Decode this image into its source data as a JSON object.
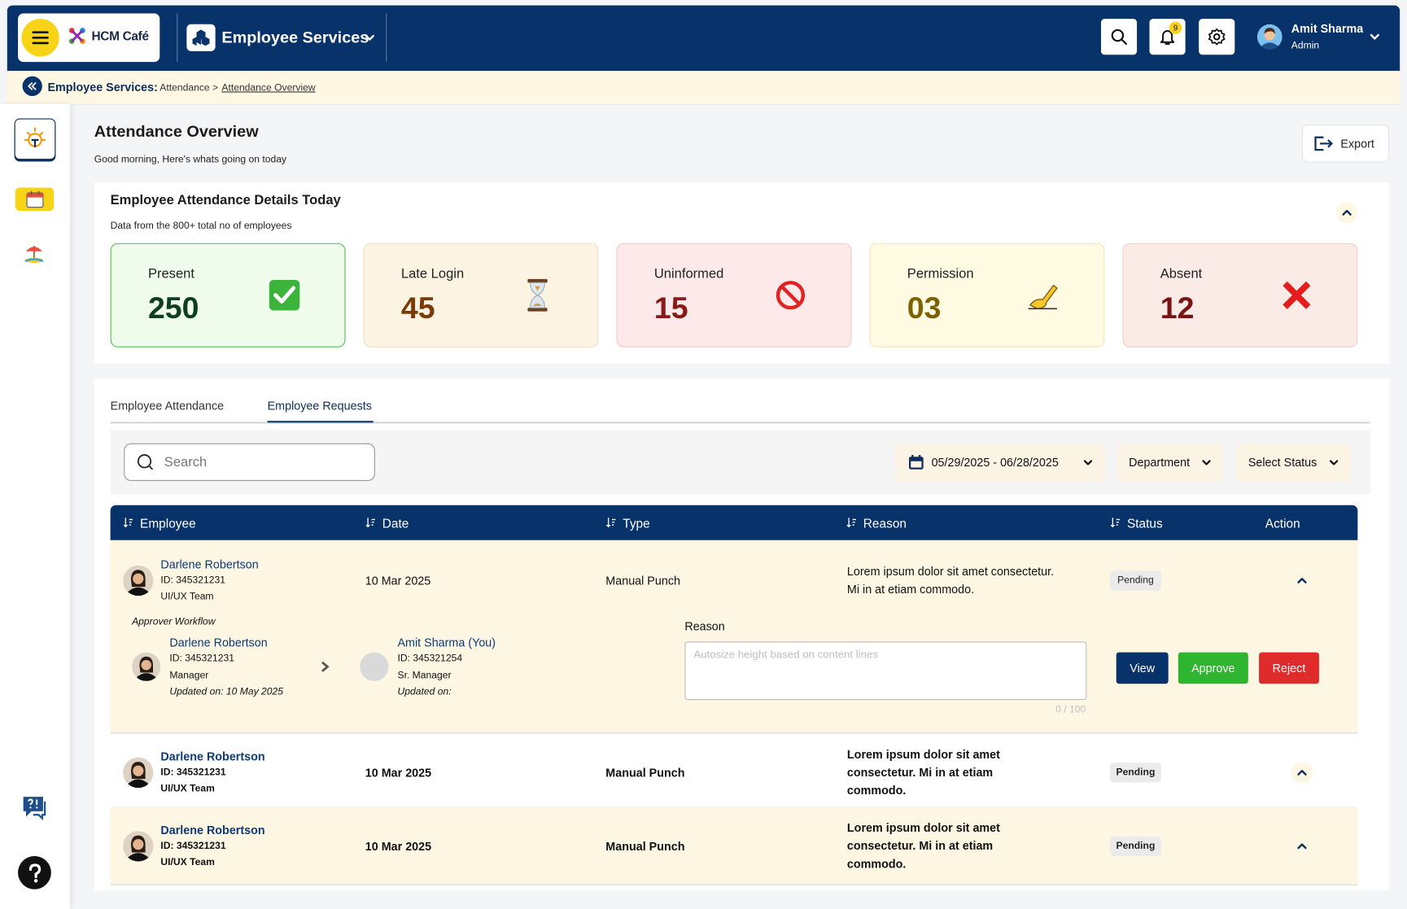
{
  "header": {
    "brand": "HCM Café",
    "module": "Employee Services",
    "notification_count": "9",
    "user": {
      "name": "Amit Sharma",
      "role": "Admin"
    }
  },
  "breadcrumb": {
    "section": "Employee Services:",
    "parent": "Attendance >",
    "current": "Attendance Overview"
  },
  "page": {
    "title": "Attendance Overview",
    "subtitle": "Good morning, Here's whats going on today",
    "export": "Export"
  },
  "summary": {
    "title": "Employee Attendance Details Today",
    "subtitle": "Data from the 800+ total no of employees",
    "cards": [
      {
        "label": "Present",
        "value": "250"
      },
      {
        "label": "Late Login",
        "value": "45"
      },
      {
        "label": "Uninformed",
        "value": "15"
      },
      {
        "label": "Permission",
        "value": "03"
      },
      {
        "label": "Absent",
        "value": "12"
      }
    ]
  },
  "tabs": [
    "Employee Attendance",
    "Employee Requests"
  ],
  "filters": {
    "search": "Search",
    "date_range": "05/29/2025 - 06/28/2025",
    "department": "Department",
    "status": "Select Status"
  },
  "table": {
    "columns": [
      "Employee",
      "Date",
      "Type",
      "Reason",
      "Status",
      "Action"
    ],
    "rows": [
      {
        "name": "Darlene Robertson",
        "id": "ID: 345321231",
        "team": "UI/UX Team",
        "date": "10 Mar 2025",
        "type": "Manual Punch",
        "reason": "Lorem ipsum dolor sit amet consectetur. Mi in at etiam commodo.",
        "status": "Pending"
      },
      {
        "name": "Darlene Robertson",
        "id": "ID: 345321231",
        "team": "UI/UX Team",
        "date": "10 Mar 2025",
        "type": "Manual Punch",
        "reason": "Lorem ipsum dolor sit amet consectetur. Mi in at etiam commodo.",
        "status": "Pending"
      },
      {
        "name": "Darlene Robertson",
        "id": "ID: 345321231",
        "team": "UI/UX Team",
        "date": "10 Mar 2025",
        "type": "Manual Punch",
        "reason": "Lorem ipsum dolor sit amet consectetur. Mi in at etiam commodo.",
        "status": "Pending"
      }
    ]
  },
  "detail": {
    "workflow_label": "Approver Workflow",
    "approvers": [
      {
        "name": "Darlene Robertson",
        "id": "ID: 345321231",
        "role": "Manager",
        "updated": "Updated on: 10 May 2025"
      },
      {
        "name": "Amit Sharma (You)",
        "id": "ID: 345321254",
        "role": "Sr. Manager",
        "updated": "Updated on:"
      }
    ],
    "reason_label": "Reason",
    "reason_placeholder": "Autosize height based on content lines",
    "counter": "0 / 100",
    "actions": [
      "View",
      "Approve",
      "Reject"
    ]
  }
}
